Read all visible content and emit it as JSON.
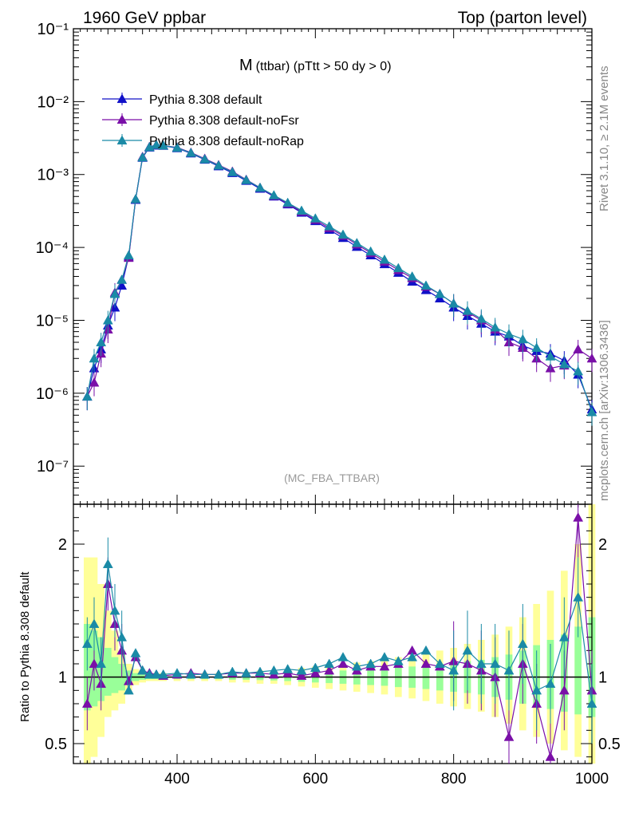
{
  "header": {
    "left": "1960 GeV ppbar",
    "right": "Top (parton level)"
  },
  "plot_title": {
    "main": "M",
    "sub": "(ttbar) (pTtt > 50 dy > 0)"
  },
  "analysis_tag": "(MC_FBA_TTBAR)",
  "side_text": {
    "rivet": "Rivet 3.1.10, ≥ 2.1M events",
    "mcplots": "mcplots.cern.ch [arXiv:1306.3436]"
  },
  "ratio_ylabel": "Ratio to Pythia 8.308 default",
  "colors": {
    "default": "#1010c8",
    "noFsr": "#7a0fa8",
    "noRap": "#1a8aa6",
    "band_outer": "#ffff99",
    "band_inner": "#99ff99"
  },
  "chart_data": [
    {
      "type": "line",
      "yscale": "log",
      "xlim": [
        250,
        1000
      ],
      "ylim": [
        3e-08,
        0.1
      ],
      "legend_placement": "top-left",
      "y_tick_labels": [
        "10⁻⁷",
        "10⁻⁶",
        "10⁻⁵",
        "10⁻⁴",
        "10⁻³",
        "10⁻²",
        "10⁻¹"
      ],
      "x": [
        270,
        280,
        290,
        300,
        310,
        320,
        330,
        340,
        350,
        360,
        370,
        380,
        400,
        420,
        440,
        460,
        480,
        500,
        520,
        540,
        560,
        580,
        600,
        620,
        640,
        660,
        680,
        700,
        720,
        740,
        760,
        780,
        800,
        820,
        840,
        860,
        880,
        900,
        920,
        940,
        960,
        980,
        1000
      ],
      "series": [
        {
          "name": "Pythia 8.308 default",
          "key": "default",
          "values": [
            9e-07,
            2.2e-06,
            4e-06,
            8.5e-06,
            1.5e-05,
            3e-05,
            7.5e-05,
            0.00045,
            0.0017,
            0.00235,
            0.0025,
            0.00248,
            0.0023,
            0.00195,
            0.0016,
            0.0013,
            0.00105,
            0.00082,
            0.00064,
            0.0005,
            0.00039,
            0.0003,
            0.00023,
            0.000175,
            0.000135,
            0.000102,
            7.8e-05,
            5.9e-05,
            4.5e-05,
            3.4e-05,
            2.6e-05,
            2e-05,
            1.5e-05,
            1.15e-05,
            9e-06,
            7e-06,
            6e-06,
            4.5e-06,
            3.8e-06,
            3.5e-06,
            2.8e-06,
            1.8e-06,
            6e-07
          ]
        },
        {
          "name": "Pythia 8.308 default-noFsr",
          "key": "noFsr",
          "values": [
            9e-07,
            1.4e-06,
            3.5e-06,
            7.5e-06,
            2.4e-05,
            3.6e-05,
            7.2e-05,
            0.00046,
            0.00175,
            0.0024,
            0.00255,
            0.0025,
            0.00235,
            0.002,
            0.00165,
            0.00135,
            0.0011,
            0.00085,
            0.00066,
            0.00051,
            0.0004,
            0.00031,
            0.00024,
            0.000185,
            0.000145,
            0.00011,
            8.4e-05,
            6.4e-05,
            4.9e-05,
            3.8e-05,
            2.9e-05,
            2.3e-05,
            1.7e-05,
            1.3e-05,
            1e-05,
            7.5e-06,
            5e-06,
            4.2e-06,
            3e-06,
            2.2e-06,
            2.4e-06,
            4e-06,
            3e-06
          ]
        },
        {
          "name": "Pythia 8.308 default-noRap",
          "key": "noRap",
          "values": [
            9e-07,
            3e-06,
            5e-06,
            1e-05,
            2.3e-05,
            3.6e-05,
            7.8e-05,
            0.00046,
            0.00172,
            0.00238,
            0.00255,
            0.0025,
            0.00233,
            0.00198,
            0.00162,
            0.00133,
            0.00108,
            0.00084,
            0.00066,
            0.00052,
            0.00041,
            0.00032,
            0.00025,
            0.000195,
            0.00015,
            0.000115,
            8.8e-05,
            6.8e-05,
            5.2e-05,
            4e-05,
            3e-05,
            2.3e-05,
            1.7e-05,
            1.35e-05,
            1.05e-05,
            8e-06,
            6.5e-06,
            5.5e-06,
            4.2e-06,
            3.2e-06,
            2.5e-06,
            2e-06,
            5.5e-07
          ]
        }
      ]
    },
    {
      "type": "line",
      "xlim": [
        250,
        1000
      ],
      "ylim": [
        0.35,
        2.3
      ],
      "x_tick_labels": [
        "400",
        "600",
        "800",
        "1000"
      ],
      "y_tick_labels": [
        "0.5",
        "1",
        "2"
      ],
      "x": [
        270,
        280,
        290,
        300,
        310,
        320,
        330,
        340,
        350,
        360,
        370,
        380,
        400,
        420,
        440,
        460,
        480,
        500,
        520,
        540,
        560,
        580,
        600,
        620,
        640,
        660,
        680,
        700,
        720,
        740,
        760,
        780,
        800,
        820,
        840,
        860,
        880,
        900,
        920,
        940,
        960,
        980,
        1000
      ],
      "series": [
        {
          "name": "Pythia 8.308 default-noFsr",
          "key": "noFsr",
          "values": [
            0.8,
            1.1,
            0.95,
            1.7,
            1.4,
            1.2,
            0.97,
            1.15,
            1.05,
            1.03,
            1.02,
            1.01,
            1.02,
            1.03,
            1.02,
            1.02,
            1.03,
            1.03,
            1.03,
            1.02,
            1.03,
            1.01,
            1.03,
            1.05,
            1.1,
            1.05,
            1.08,
            1.08,
            1.1,
            1.2,
            1.1,
            1.08,
            1.12,
            1.1,
            1.05,
            1.0,
            0.55,
            1.1,
            0.8,
            0.4,
            0.9,
            2.2,
            0.9
          ]
        },
        {
          "name": "Pythia 8.308 default-noRap",
          "key": "noRap",
          "values": [
            1.25,
            1.4,
            1.1,
            1.85,
            1.5,
            1.3,
            0.9,
            1.18,
            1.05,
            1.02,
            1.02,
            1.02,
            1.03,
            1.02,
            1.02,
            1.02,
            1.04,
            1.03,
            1.04,
            1.05,
            1.06,
            1.05,
            1.07,
            1.1,
            1.15,
            1.08,
            1.1,
            1.15,
            1.12,
            1.15,
            1.2,
            1.1,
            1.05,
            1.2,
            1.1,
            1.1,
            1.05,
            1.25,
            0.9,
            0.95,
            1.3,
            1.6,
            0.8
          ]
        }
      ],
      "bands": {
        "outer": {
          "lower": [
            0.35,
            0.4,
            0.55,
            0.7,
            0.75,
            0.8,
            0.9,
            0.94,
            0.96,
            0.97,
            0.97,
            0.97,
            0.97,
            0.97,
            0.97,
            0.97,
            0.96,
            0.96,
            0.95,
            0.95,
            0.94,
            0.93,
            0.92,
            0.91,
            0.9,
            0.89,
            0.88,
            0.87,
            0.85,
            0.84,
            0.82,
            0.8,
            0.78,
            0.76,
            0.74,
            0.7,
            0.65,
            0.6,
            0.55,
            0.5,
            0.45,
            0.4,
            0.35
          ],
          "upper": [
            1.9,
            1.9,
            1.7,
            1.5,
            1.35,
            1.2,
            1.1,
            1.06,
            1.04,
            1.03,
            1.03,
            1.03,
            1.03,
            1.03,
            1.03,
            1.03,
            1.04,
            1.04,
            1.05,
            1.05,
            1.06,
            1.07,
            1.08,
            1.09,
            1.1,
            1.11,
            1.12,
            1.13,
            1.15,
            1.16,
            1.18,
            1.2,
            1.22,
            1.25,
            1.28,
            1.32,
            1.38,
            1.45,
            1.55,
            1.65,
            1.8,
            2.0,
            2.3
          ]
        },
        "inner": {
          "lower": [
            0.75,
            0.78,
            0.82,
            0.86,
            0.88,
            0.9,
            0.95,
            0.97,
            0.98,
            0.985,
            0.985,
            0.985,
            0.985,
            0.985,
            0.985,
            0.985,
            0.98,
            0.98,
            0.978,
            0.975,
            0.97,
            0.965,
            0.96,
            0.955,
            0.95,
            0.945,
            0.94,
            0.935,
            0.925,
            0.92,
            0.91,
            0.9,
            0.89,
            0.88,
            0.87,
            0.85,
            0.83,
            0.8,
            0.78,
            0.76,
            0.74,
            0.72,
            0.7
          ],
          "upper": [
            1.4,
            1.35,
            1.3,
            1.22,
            1.15,
            1.1,
            1.05,
            1.03,
            1.02,
            1.015,
            1.015,
            1.015,
            1.015,
            1.015,
            1.015,
            1.015,
            1.02,
            1.02,
            1.022,
            1.025,
            1.03,
            1.035,
            1.04,
            1.045,
            1.05,
            1.055,
            1.06,
            1.065,
            1.075,
            1.08,
            1.09,
            1.1,
            1.11,
            1.12,
            1.13,
            1.15,
            1.17,
            1.2,
            1.24,
            1.28,
            1.32,
            1.38,
            1.45
          ]
        }
      }
    }
  ]
}
